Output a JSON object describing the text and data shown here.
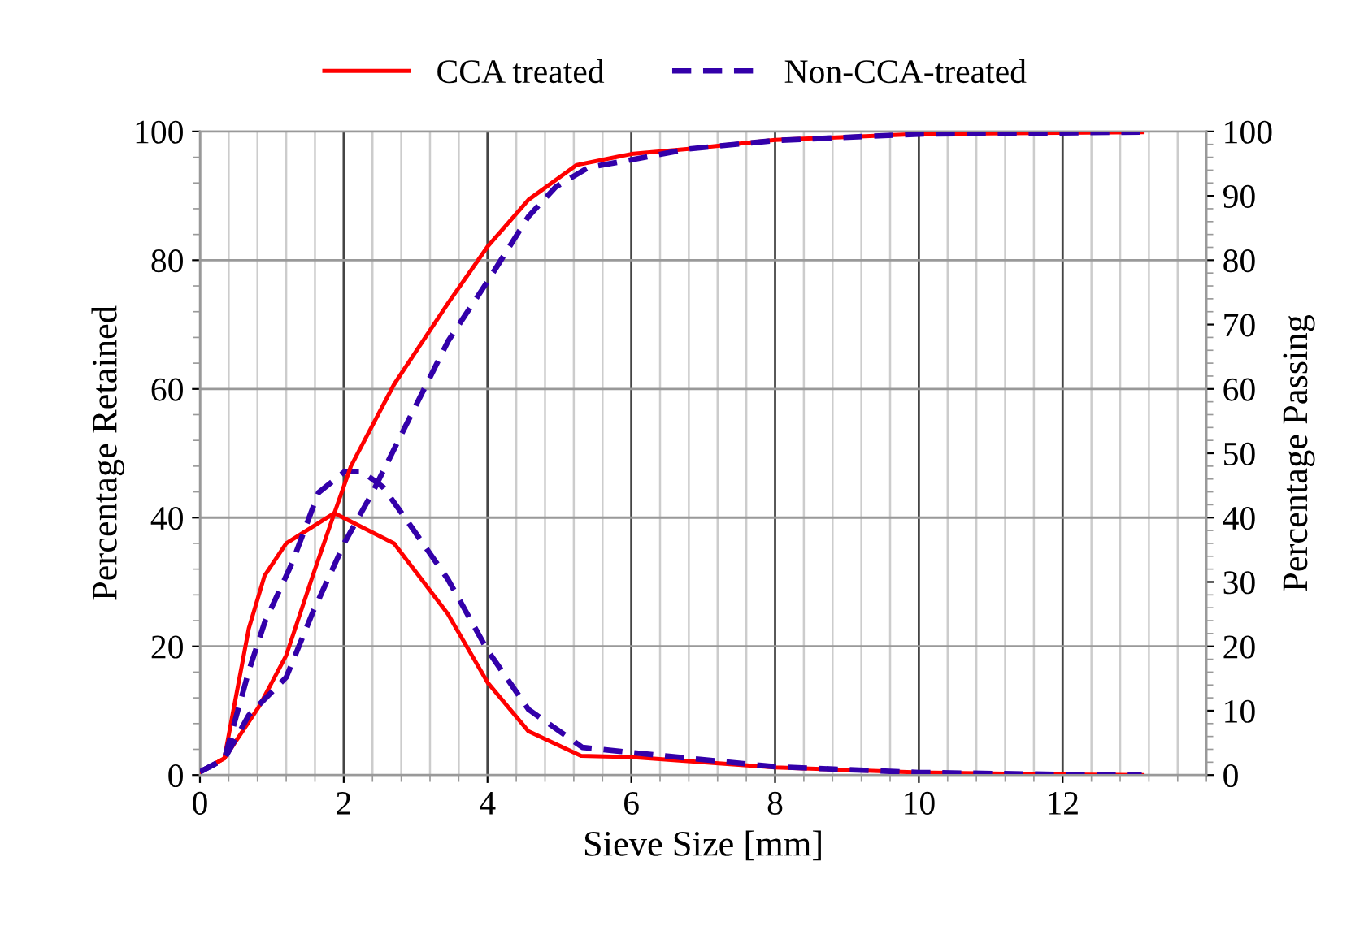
{
  "chart_data": {
    "type": "line",
    "xlabel": "Sieve Size [mm]",
    "ylabel": "Percentage Retained",
    "y2label": "Percentage Passing",
    "xlim": [
      0,
      14
    ],
    "xticks": [
      0,
      2,
      4,
      6,
      8,
      10,
      12
    ],
    "ylim": [
      0,
      100
    ],
    "yticks": [
      0,
      20,
      40,
      60,
      80,
      100
    ],
    "y2lim": [
      0,
      100
    ],
    "y2ticks": [
      0,
      10,
      20,
      30,
      40,
      50,
      60,
      70,
      80,
      90,
      100
    ],
    "grid": true,
    "legend": "top",
    "marker": "none",
    "series": [
      {
        "name": "CCA treated",
        "color": "#ff0000",
        "line_style": "solid",
        "x": [
          0,
          0.34,
          0.68,
          0.9,
          1.2,
          1.87,
          2.7,
          3.45,
          4.0,
          4.57,
          5.3,
          6.0,
          8.0,
          10.0,
          12.0,
          13.1
        ],
        "values": [
          0.5,
          2.6,
          22.8,
          31,
          36,
          40.7,
          36,
          25,
          14.4,
          6.8,
          3,
          2.8,
          1.2,
          0.4,
          0.1,
          0
        ]
      },
      {
        "name": "Non-CCA-treated",
        "color": "#3300aa",
        "line_style": "dashed",
        "x": [
          0,
          0.34,
          0.68,
          0.9,
          1.28,
          1.65,
          2.02,
          2.25,
          2.55,
          2.92,
          3.45,
          4.0,
          4.57,
          5.32,
          6.0,
          8.0,
          10.0,
          12.0,
          13.1
        ],
        "values": [
          0.5,
          2.5,
          16.2,
          23.7,
          32.9,
          43.9,
          47.2,
          47.2,
          44.7,
          38.9,
          30.4,
          19.4,
          10.2,
          4.3,
          3.5,
          1.3,
          0.4,
          0.1,
          0
        ]
      },
      {
        "color": "#ff0000",
        "line_style": "solid",
        "axis": "y2",
        "x": [
          0,
          0.34,
          0.82,
          1.2,
          1.57,
          1.87,
          2.1,
          2.7,
          3.45,
          4.0,
          4.57,
          5.24,
          6.0,
          6.8,
          8.0,
          10.0,
          13.1
        ],
        "values": [
          0.5,
          2.6,
          10.6,
          18.6,
          31,
          40.7,
          48,
          60.7,
          73.3,
          82.1,
          89.4,
          94.8,
          96.5,
          97.3,
          98.7,
          99.6,
          99.9
        ]
      },
      {
        "color": "#3300aa",
        "line_style": "dashed",
        "axis": "y2",
        "x": [
          0,
          0.34,
          0.68,
          1.2,
          1.57,
          2.02,
          2.4,
          2.85,
          3.45,
          4.0,
          4.57,
          4.95,
          5.4,
          6.0,
          6.8,
          8.0,
          10.0,
          13.1
        ],
        "values": [
          0.5,
          2.5,
          9.3,
          15.2,
          25.3,
          36.3,
          43.9,
          54,
          67.4,
          76.7,
          86.8,
          91.4,
          94.4,
          95.6,
          97.3,
          98.6,
          99.6,
          99.9
        ]
      }
    ]
  }
}
